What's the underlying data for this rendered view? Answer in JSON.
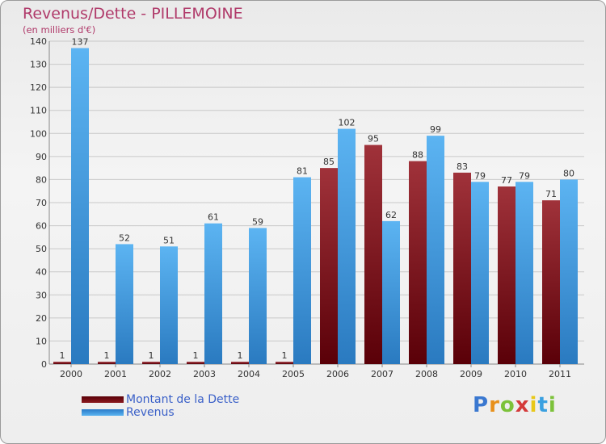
{
  "chart_data": {
    "type": "bar",
    "title": "Revenus/Dette - PILLEMOINE",
    "subtitle": "(en milliers d'€)",
    "categories": [
      "2000",
      "2001",
      "2002",
      "2003",
      "2004",
      "2005",
      "2006",
      "2007",
      "2008",
      "2009",
      "2010",
      "2011"
    ],
    "series": [
      {
        "name": "Montant de la Dette",
        "color": "#7a0f14",
        "values": [
          1,
          1,
          1,
          1,
          1,
          1,
          85,
          95,
          88,
          83,
          77,
          71
        ]
      },
      {
        "name": "Revenus",
        "color": "#4aa6e8",
        "values": [
          137,
          52,
          51,
          61,
          59,
          81,
          102,
          62,
          99,
          79,
          79,
          80
        ]
      }
    ],
    "ylim": [
      0,
      140
    ],
    "yticks": [
      0,
      10,
      20,
      30,
      40,
      50,
      60,
      70,
      80,
      90,
      100,
      110,
      120,
      130,
      140
    ],
    "grid": true,
    "xlabel": "",
    "ylabel": ""
  },
  "legend": {
    "debt_label": "Montant de la Dette",
    "revenue_label": "Revenus"
  },
  "brand": {
    "letters": [
      "P",
      "r",
      "o",
      "x",
      "i",
      "t",
      "i"
    ],
    "colors": [
      "#3a78d0",
      "#e8901a",
      "#7cc23a",
      "#d43a3a",
      "#e8c81a",
      "#3aa0e0",
      "#7cc23a"
    ]
  }
}
